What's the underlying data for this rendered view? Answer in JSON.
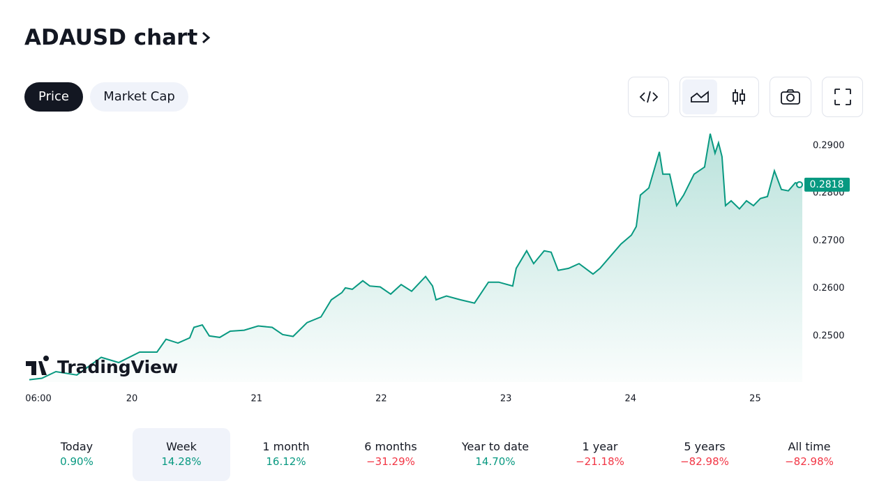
{
  "header": {
    "title": "ADAUSD chart"
  },
  "tabs": [
    {
      "label": "Price",
      "active": true
    },
    {
      "label": "Market Cap",
      "active": false
    }
  ],
  "watermark": "TradingView",
  "chart_data": {
    "type": "line",
    "color": "#089981",
    "x": [
      19.177,
      19.278,
      19.39,
      19.558,
      19.754,
      19.894,
      20.062,
      20.201,
      20.274,
      20.369,
      20.464,
      20.498,
      20.565,
      20.621,
      20.705,
      20.789,
      20.901,
      21.013,
      21.125,
      21.209,
      21.293,
      21.405,
      21.517,
      21.6,
      21.684,
      21.712,
      21.768,
      21.852,
      21.908,
      21.992,
      22.076,
      22.16,
      22.244,
      22.356,
      22.412,
      22.44,
      22.524,
      22.636,
      22.748,
      22.86,
      22.943,
      23.055,
      23.083,
      23.167,
      23.223,
      23.307,
      23.363,
      23.419,
      23.503,
      23.587,
      23.699,
      23.755,
      23.867,
      23.923,
      24.007,
      24.046,
      24.079,
      24.147,
      24.231,
      24.259,
      24.314,
      24.37,
      24.426,
      24.51,
      24.594,
      24.639,
      24.678,
      24.706,
      24.734,
      24.762,
      24.807,
      24.874,
      24.93,
      24.986,
      25.042,
      25.098,
      25.154,
      25.21,
      25.266,
      25.322,
      25.378
    ],
    "values": [
      0.2408,
      0.2411,
      0.2425,
      0.2418,
      0.2455,
      0.2444,
      0.2466,
      0.2466,
      0.2493,
      0.2485,
      0.2496,
      0.2518,
      0.2523,
      0.25,
      0.2497,
      0.251,
      0.2512,
      0.2521,
      0.2518,
      0.2503,
      0.2499,
      0.2528,
      0.254,
      0.2576,
      0.2591,
      0.2601,
      0.2598,
      0.2616,
      0.2605,
      0.2603,
      0.2588,
      0.2608,
      0.2594,
      0.2625,
      0.2605,
      0.2576,
      0.2584,
      0.2576,
      0.2569,
      0.2613,
      0.2613,
      0.2605,
      0.2642,
      0.2679,
      0.2652,
      0.2679,
      0.2676,
      0.2638,
      0.2642,
      0.2652,
      0.263,
      0.2642,
      0.2676,
      0.2693,
      0.2712,
      0.273,
      0.2796,
      0.2811,
      0.2887,
      0.284,
      0.284,
      0.2774,
      0.2796,
      0.284,
      0.2855,
      0.2925,
      0.2884,
      0.2906,
      0.2877,
      0.2774,
      0.2784,
      0.2767,
      0.2784,
      0.2774,
      0.2789,
      0.2793,
      0.2847,
      0.2808,
      0.2805,
      0.2822,
      0.2818
    ],
    "xlim": [
      19.177,
      25.378
    ],
    "ylim": [
      0.2403,
      0.2935
    ],
    "xticks": [
      {
        "value": 19.25,
        "label": "06:00"
      },
      20,
      21,
      22,
      23,
      24,
      25
    ],
    "yticks": [
      {
        "value": 0.25,
        "label": "0.2500"
      },
      {
        "value": 0.26,
        "label": "0.2600"
      },
      {
        "value": 0.27,
        "label": "0.2700"
      },
      {
        "value": 0.28,
        "label": "0.2800"
      },
      {
        "value": 0.29,
        "label": "0.2900"
      }
    ],
    "current_price": 0.2818
  },
  "periods": [
    {
      "label": "Today",
      "change": "0.90%"
    },
    {
      "label": "Week",
      "change": "14.28%",
      "selected": true
    },
    {
      "label": "1 month",
      "change": "16.12%"
    },
    {
      "label": "6 months",
      "change": "−31.29%"
    },
    {
      "label": "Year to date",
      "change": "14.70%"
    },
    {
      "label": "1 year",
      "change": "−21.18%"
    },
    {
      "label": "5 years",
      "change": "−82.98%"
    },
    {
      "label": "All time",
      "change": "−82.98%"
    }
  ]
}
